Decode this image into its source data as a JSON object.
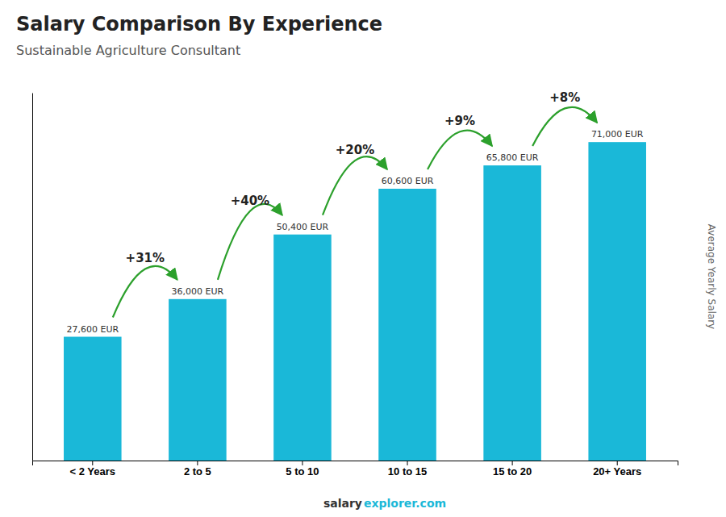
{
  "chart_data": {
    "type": "bar",
    "title": "Salary Comparison By Experience",
    "subtitle": "Sustainable Agriculture Consultant",
    "categories": [
      "< 2 Years",
      "2 to 5",
      "5 to 10",
      "10 to 15",
      "15 to 20",
      "20+ Years"
    ],
    "values": [
      27600,
      36000,
      50400,
      60600,
      65800,
      71000
    ],
    "value_labels": [
      "27,600 EUR",
      "36,000 EUR",
      "50,400 EUR",
      "60,600 EUR",
      "65,800 EUR",
      "71,000 EUR"
    ],
    "data_labels": true,
    "color": "#1ab8d8",
    "ylim": [
      0,
      82000
    ],
    "ylabel": "Average Yearly Salary",
    "tick_labels": "x",
    "grid": false,
    "annotations": [
      {
        "from": "< 2 Years",
        "to": "2 to 5",
        "text": "+31%"
      },
      {
        "from": "2 to 5",
        "to": "5 to 10",
        "text": "+40%"
      },
      {
        "from": "5 to 10",
        "to": "10 to 15",
        "text": "+20%"
      },
      {
        "from": "10 to 15",
        "to": "15 to 20",
        "text": "+9%"
      },
      {
        "from": "15 to 20",
        "to": "20+ Years",
        "text": "+8%"
      }
    ],
    "footer": [
      "salary",
      "explorer.com"
    ]
  }
}
